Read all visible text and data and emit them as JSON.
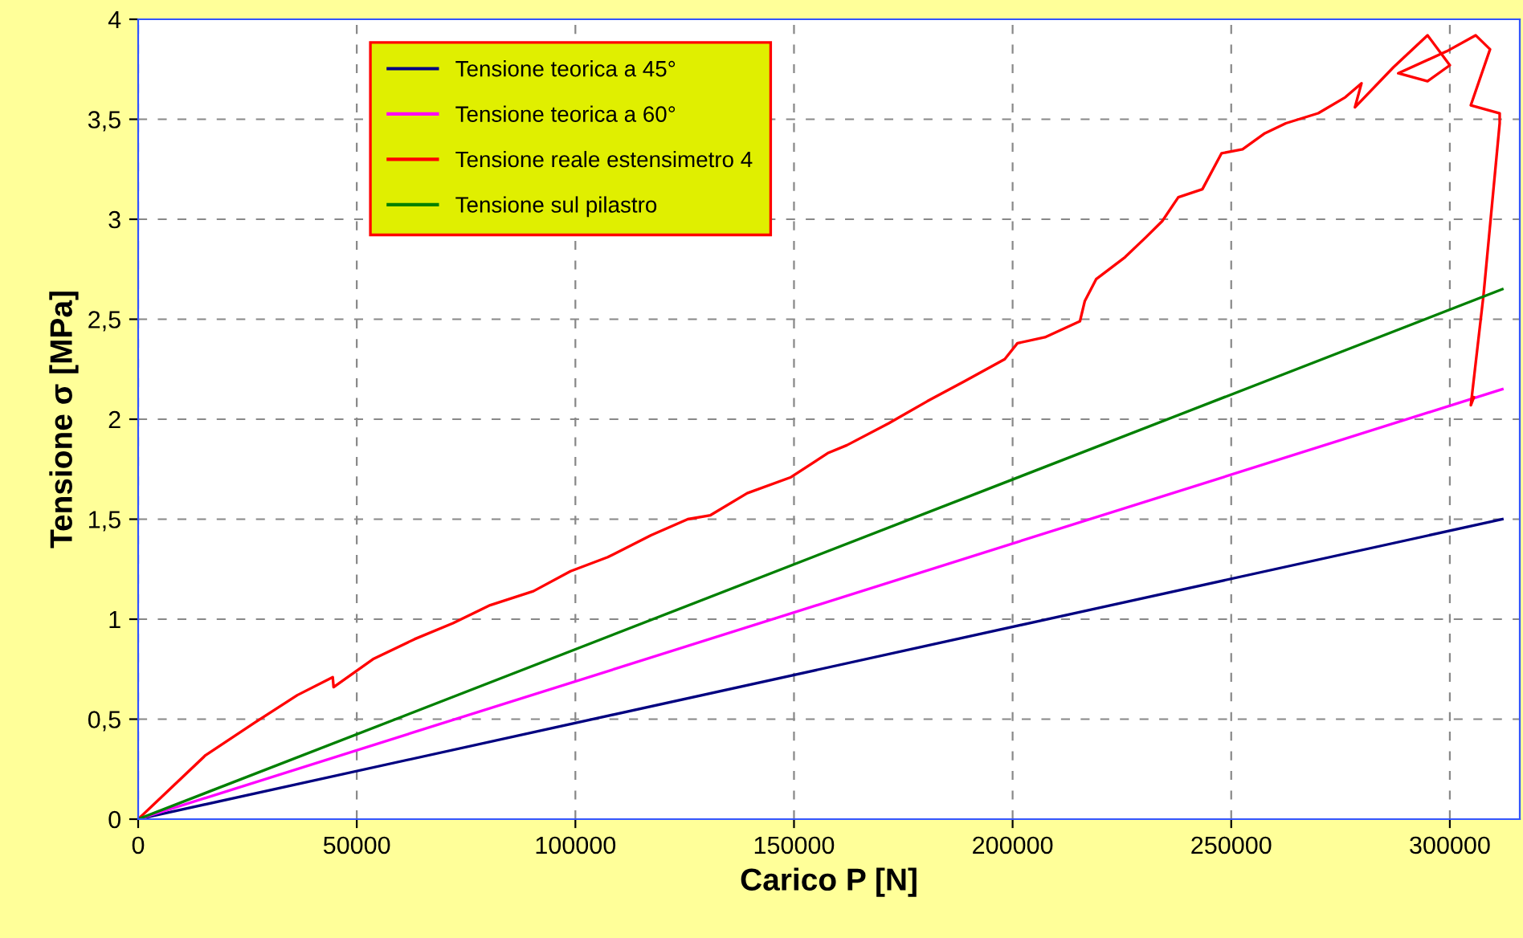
{
  "chart_data": {
    "type": "line",
    "xlabel": "Carico P [N]",
    "ylabel": "Tensione σ [MPa]",
    "xlim": [
      0,
      316000
    ],
    "ylim": [
      0,
      4
    ],
    "xticks": [
      0,
      50000,
      100000,
      150000,
      200000,
      250000,
      300000
    ],
    "yticks": [
      0,
      {
        "value": 0.5,
        "label": "0,5"
      },
      1,
      {
        "value": 1.5,
        "label": "1,5"
      },
      2,
      {
        "value": 2.5,
        "label": "2,5"
      },
      3,
      {
        "value": 3.5,
        "label": "3,5"
      },
      4
    ],
    "grid": true,
    "legend": "top",
    "line_style": "solid",
    "marker": "none",
    "series": [
      {
        "name": "Tensione teorica a 45°",
        "color": "#000080",
        "x": [
          0,
          312000
        ],
        "values": [
          0,
          1.5
        ]
      },
      {
        "name": "Tensione teorica a 60°",
        "color": "#ff00ff",
        "x": [
          0,
          312000
        ],
        "values": [
          0,
          2.15
        ]
      },
      {
        "name": "Tensione reale estensimetro 4",
        "color": "#ff0000",
        "x": [
          0,
          15440,
          26500,
          36400,
          44500,
          44700,
          53700,
          63200,
          72000,
          80500,
          90400,
          98900,
          107400,
          117300,
          125700,
          130900,
          139300,
          149300,
          157700,
          162100,
          171700,
          180500,
          189000,
          198200,
          201100,
          207400,
          215400,
          216500,
          219100,
          225700,
          230500,
          234200,
          237900,
          243400,
          247800,
          252600,
          257700,
          262500,
          269900,
          276100,
          279800,
          278300,
          287100,
          294900,
          300000,
          294900,
          288200,
          299300,
          305900,
          309200,
          304800,
          311400,
          311400,
          307700,
          304800,
          305500
        ],
        "values": [
          0,
          0.32,
          0.48,
          0.62,
          0.71,
          0.66,
          0.8,
          0.9,
          0.98,
          1.07,
          1.14,
          1.24,
          1.31,
          1.42,
          1.5,
          1.52,
          1.63,
          1.71,
          1.83,
          1.87,
          1.98,
          2.09,
          2.19,
          2.3,
          2.38,
          2.41,
          2.49,
          2.59,
          2.7,
          2.81,
          2.91,
          2.99,
          3.11,
          3.15,
          3.33,
          3.35,
          3.43,
          3.48,
          3.53,
          3.61,
          3.68,
          3.56,
          3.76,
          3.92,
          3.77,
          3.69,
          3.73,
          3.84,
          3.92,
          3.85,
          3.57,
          3.53,
          3.48,
          2.62,
          2.07,
          2.11
        ]
      },
      {
        "name": "Tensione sul pilastro",
        "color": "#008000",
        "x": [
          0,
          312000
        ],
        "values": [
          0,
          2.65
        ]
      }
    ]
  }
}
